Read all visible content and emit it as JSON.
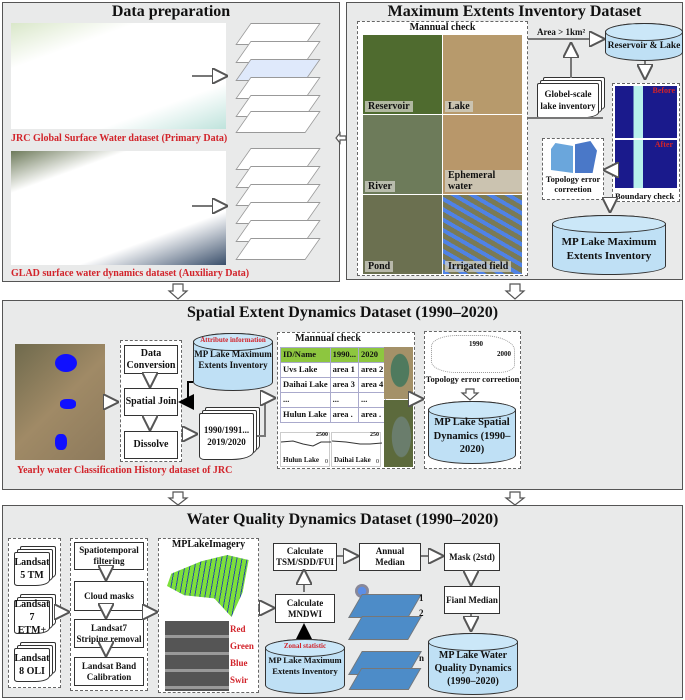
{
  "data_preparation": {
    "title": "Data preparation",
    "jrc_caption": "JRC Global Surface Water dataset (Primary Data)",
    "glad_caption": "GLAD surface water dynamics dataset (Auxiliary Data)"
  },
  "max_extents": {
    "title": "Maximum Extents Inventory Dataset",
    "manual_check": "Mannual check",
    "tiles": [
      "Reservoir",
      "Lake",
      "River",
      "Ephemeral water",
      "Pond",
      "Irrigated field"
    ],
    "area_filter": "Area > 1km²",
    "reservoir_lake": "Reservoir & Lake",
    "global_inventory": "Globel-scale lake inventory",
    "before": "Before",
    "after": "After",
    "boundary_check": "Boundary check",
    "topology": "Topology error correetion",
    "output": "MP Lake Maximum Extents Inventory"
  },
  "spatial": {
    "title": "Spatial Extent Dynamics Dataset (1990–2020)",
    "jrc_caption": "Yearly water Classification History dataset of JRC",
    "steps": [
      "Data Conversion",
      "Spatial Join",
      "Dissolve"
    ],
    "attribute_label": "Attribute information",
    "attribute_db": "MP Lake Maximum Extents Inventory",
    "years_doc": "1990/1991... 2019/2020",
    "manual_check": "Mannual check",
    "table": {
      "headers": [
        "ID/Name",
        "1990...",
        "2020"
      ],
      "rows": [
        [
          "Uvs Lake",
          "area 1",
          "area 2"
        ],
        [
          "Daihai Lake",
          "area 3",
          "area 4"
        ],
        [
          "...",
          "...",
          "..."
        ],
        [
          "Hulun Lake",
          "area .",
          "area ."
        ]
      ]
    },
    "charts": [
      {
        "name": "Hulun Lake",
        "ymax": "2500",
        "ymin": "0"
      },
      {
        "name": "Daihai Lake",
        "ymax": "250",
        "ymin": "0"
      }
    ],
    "map_years": [
      "1990",
      "2000"
    ],
    "topology": "Topology error correetion",
    "output": "MP Lake Spatial Dynamics (1990–2020)"
  },
  "quality": {
    "title": "Water Quality Dynamics Dataset (1990–2020)",
    "landsat": [
      "Landsat 5 TM",
      "Landsat 7 ETM+",
      "Landsat 8 OLI"
    ],
    "preprocess": [
      "Spatiotemporal filtering",
      "Cloud masks",
      "Landsat7 Striping removal",
      "Landsat Band Calibration"
    ],
    "imagery_title": "MPLakeImagery",
    "bands": [
      "Red",
      "Green",
      "Blue",
      "Swir"
    ],
    "calc_tsm": "Calculate TSM/SDD/FUI",
    "calc_mndwi": "Calculate MNDWI",
    "zonal": "Zonal statistic",
    "zonal_db": "MP Lake Maximum Extents Inventory",
    "stack_labels": [
      "1",
      "2",
      "n"
    ],
    "annual_median": "Annual Median",
    "mask": "Mask (2std)",
    "final_median": "Fianl Median",
    "output": "MP Lake Water Quality Dynamics (1990–2020)"
  },
  "colors": {
    "water": "#3b7cf5",
    "caption_red": "#d2232a",
    "db_fill": "#bfe0f5",
    "table_header": "#8dc63f"
  }
}
